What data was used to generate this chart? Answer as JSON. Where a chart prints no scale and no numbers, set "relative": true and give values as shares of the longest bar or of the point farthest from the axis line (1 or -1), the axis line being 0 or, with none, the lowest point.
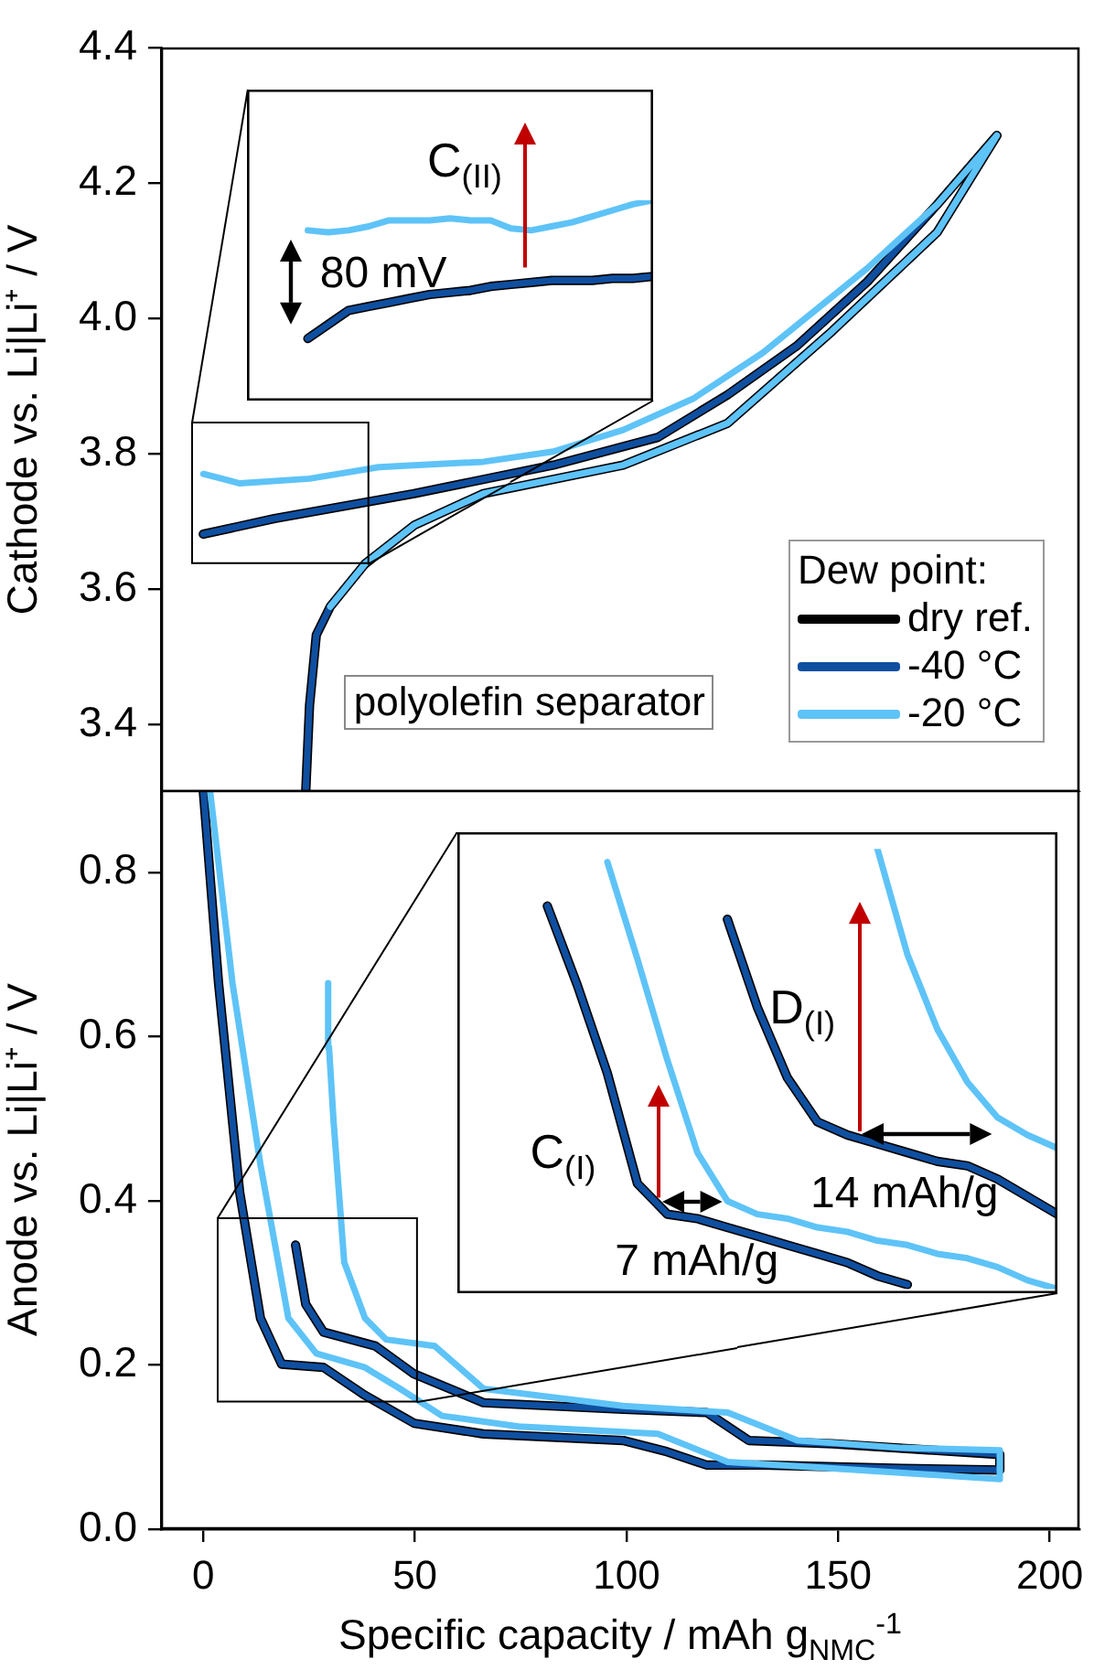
{
  "chart_data": [
    {
      "type": "line",
      "ylabel": "Cathode vs. Li|Li⁺ / V",
      "xlim": [
        -10,
        207
      ],
      "xticks": [
        0,
        50,
        100,
        150,
        200
      ],
      "ylim": [
        3.3,
        4.4
      ],
      "yticks": [
        3.4,
        3.6,
        3.8,
        {
          "value": 4,
          "label": "4.0"
        },
        4.2,
        4.4
      ],
      "tick_labels": "y",
      "grid": false,
      "legend": "bottom right",
      "legend_title": "Dew point:",
      "marker": "none",
      "annotations": [
        "polyolefin separator"
      ],
      "series": [
        {
          "name": "dry ref.",
          "color": "#000000",
          "x": [
            0,
            16.8,
            49.8,
            82.7,
            107.4,
            123.9,
            140.4,
            156.9,
            173.4,
            187.5,
            173.4,
            148.6,
            123.9,
            99.2,
            66.2,
            49.8,
            38.2,
            30.0,
            26.7,
            25.1,
            24.2
          ],
          "values": [
            3.681,
            3.704,
            3.741,
            3.783,
            3.824,
            3.887,
            3.96,
            4.054,
            4.168,
            4.27,
            4.127,
            3.981,
            3.845,
            3.783,
            3.741,
            3.694,
            3.637,
            3.574,
            3.532,
            3.428,
            3.3
          ]
        },
        {
          "name": "-40 °C",
          "color": "#0f4fa0",
          "x": [
            0,
            16.8,
            49.8,
            82.7,
            107.4,
            123.9,
            140.4,
            156.9,
            173.4,
            187.5,
            173.4,
            148.6,
            123.9,
            99.2,
            66.2,
            49.8,
            38.2,
            30.0,
            26.7,
            25.1,
            24.2
          ],
          "values": [
            3.681,
            3.704,
            3.741,
            3.783,
            3.824,
            3.887,
            3.96,
            4.054,
            4.168,
            4.27,
            4.127,
            3.981,
            3.845,
            3.783,
            3.741,
            3.694,
            3.637,
            3.574,
            3.532,
            3.428,
            3.3
          ]
        },
        {
          "name": "-20 °C",
          "color": "#5ec3f7",
          "x": [
            0,
            8.6,
            25.1,
            41.5,
            66.2,
            82.7,
            99.2,
            115.7,
            132.2,
            156.9,
            173.4,
            187.5,
            173.4,
            148.6,
            123.9,
            99.2,
            66.2,
            49.8,
            38.2,
            30.0
          ],
          "values": [
            3.77,
            3.756,
            3.763,
            3.78,
            3.788,
            3.803,
            3.835,
            3.881,
            3.949,
            4.074,
            4.168,
            4.27,
            4.127,
            3.981,
            3.845,
            3.783,
            3.741,
            3.694,
            3.637,
            3.574
          ]
        }
      ]
    },
    {
      "type": "line",
      "relative": true,
      "tick_labels": false,
      "marker": "none",
      "annotations": [
        "C$_{(II)}$",
        "80 mV"
      ],
      "categories": [
        null,
        null,
        null,
        null,
        null,
        null,
        null,
        null,
        null,
        null,
        null,
        null,
        null,
        null,
        null,
        null,
        null,
        null,
        null,
        null,
        null
      ],
      "series": [
        {
          "color": "#000000",
          "values": [
            null,
            null,
            null,
            0.31,
            0.38,
            0.45,
            0.47,
            0.49,
            0.51,
            0.53,
            0.54,
            0.55,
            0.57,
            0.58,
            0.59,
            0.6,
            0.6,
            0.6,
            0.61,
            0.61,
            0.62
          ]
        },
        {
          "color": "#0f4fa0",
          "values": [
            null,
            null,
            null,
            0.31,
            0.38,
            0.45,
            0.47,
            0.49,
            0.51,
            0.53,
            0.54,
            0.55,
            0.57,
            0.58,
            0.59,
            0.6,
            0.6,
            0.6,
            0.61,
            0.61,
            0.62
          ]
        },
        {
          "color": "#5ec3f7",
          "values": [
            null,
            null,
            null,
            0.85,
            0.84,
            0.85,
            0.87,
            0.9,
            0.9,
            0.9,
            0.91,
            0.9,
            0.9,
            0.86,
            0.85,
            0.87,
            0.89,
            0.92,
            0.95,
            0.98,
            1
          ]
        }
      ]
    },
    {
      "type": "line",
      "ylabel": "Anode vs. Li|Li⁺ / V",
      "xlabel": "Specific capacity / mAh g$_{NMC}$$^{-1}$",
      "xlim": [
        -10,
        207
      ],
      "xticks": [
        0,
        50,
        100,
        150,
        200
      ],
      "ylim": [
        0,
        0.9
      ],
      "yticks": [
        {
          "value": 0,
          "label": "0.0"
        },
        0.2,
        0.4,
        0.6,
        0.8
      ],
      "grid": false,
      "marker": "none",
      "series": [
        {
          "color": "#000000",
          "x": [
            0,
            3.6,
            8.6,
            13.5,
            18.5,
            28.4,
            38.2,
            49.8,
            66.2,
            99.2,
            109.1,
            119.0,
            132.2,
            165.1,
            188.2,
            188.2,
            148.6,
            128.9,
            119.0,
            99.2,
            66.2,
            49.8,
            40.7,
            28.4,
            24.2,
            21.8
          ],
          "values": [
            0.899,
            0.665,
            0.41,
            0.257,
            0.201,
            0.197,
            0.163,
            0.129,
            0.116,
            0.108,
            0.095,
            0.078,
            0.078,
            0.074,
            0.072,
            0.091,
            0.104,
            0.108,
            0.142,
            0.146,
            0.154,
            0.189,
            0.223,
            0.24,
            0.274,
            0.346
          ]
        },
        {
          "color": "#0f4fa0",
          "x": [
            0,
            3.6,
            8.6,
            13.5,
            18.5,
            28.4,
            38.2,
            49.8,
            66.2,
            99.2,
            109.1,
            119.0,
            132.2,
            165.1,
            188.2,
            188.2,
            148.6,
            128.9,
            119.0,
            99.2,
            66.2,
            49.8,
            40.7,
            28.4,
            24.2,
            21.8
          ],
          "values": [
            0.899,
            0.665,
            0.41,
            0.257,
            0.201,
            0.197,
            0.163,
            0.129,
            0.116,
            0.108,
            0.095,
            0.078,
            0.078,
            0.074,
            0.072,
            0.091,
            0.104,
            0.108,
            0.142,
            0.146,
            0.154,
            0.189,
            0.223,
            0.24,
            0.274,
            0.346
          ]
        },
        {
          "color": "#5ec3f7",
          "x": [
            1.6,
            6.9,
            13.5,
            20.1,
            26.7,
            38.2,
            46.5,
            56.4,
            74.5,
            107.4,
            123.9,
            148.6,
            188.2,
            188.2,
            165.1,
            140.4,
            123.9,
            99.2,
            66.2,
            54.7,
            43.2,
            38.2,
            33.3,
            30.8,
            29.7,
            29.5
          ],
          "values": [
            0.899,
            0.665,
            0.444,
            0.257,
            0.214,
            0.197,
            0.171,
            0.138,
            0.125,
            0.116,
            0.082,
            0.074,
            0.061,
            0.096,
            0.099,
            0.108,
            0.142,
            0.15,
            0.171,
            0.223,
            0.231,
            0.257,
            0.325,
            0.495,
            0.587,
            0.665
          ]
        }
      ]
    },
    {
      "type": "line",
      "relative": true,
      "tick_labels": false,
      "marker": "none",
      "annotations": [
        "C$_{(I)}$",
        "D$_{(I)}$",
        "7 mAh/g",
        "14 mAh/g"
      ],
      "categories": [
        null,
        null,
        null,
        null,
        null,
        null,
        null,
        null,
        null,
        null,
        null,
        null,
        null,
        null,
        null,
        null,
        null,
        null,
        null,
        null,
        null
      ],
      "series": [
        {
          "color": "#000000",
          "values": [
            null,
            null,
            null,
            0.87,
            0.69,
            0.49,
            0.24,
            0.17,
            0.16,
            0.14,
            0.12,
            0.1,
            0.08,
            0.06,
            0.03,
            0.01,
            null,
            null,
            null,
            null,
            null
          ]
        },
        {
          "color": "#000000",
          "values": [
            null,
            null,
            null,
            null,
            null,
            null,
            null,
            null,
            null,
            0.84,
            0.64,
            0.48,
            0.38,
            0.35,
            0.33,
            0.31,
            0.29,
            0.28,
            0.25,
            0.21,
            0.17
          ]
        },
        {
          "color": "#0f4fa0",
          "values": [
            null,
            null,
            null,
            0.87,
            0.69,
            0.49,
            0.24,
            0.17,
            0.16,
            0.14,
            0.12,
            0.1,
            0.08,
            0.06,
            0.03,
            0.01,
            null,
            null,
            null,
            null,
            null
          ]
        },
        {
          "color": "#0f4fa0",
          "values": [
            null,
            null,
            null,
            null,
            null,
            null,
            null,
            null,
            null,
            0.84,
            0.64,
            0.48,
            0.38,
            0.35,
            0.33,
            0.31,
            0.29,
            0.28,
            0.25,
            0.21,
            0.17
          ]
        },
        {
          "color": "#5ec3f7",
          "values": [
            null,
            null,
            null,
            null,
            null,
            0.97,
            0.75,
            0.52,
            0.31,
            0.2,
            0.17,
            0.16,
            0.14,
            0.13,
            0.11,
            0.1,
            0.08,
            0.07,
            0.05,
            0.02,
            0
          ]
        },
        {
          "color": "#5ec3f7",
          "values": [
            null,
            null,
            null,
            null,
            null,
            null,
            null,
            null,
            null,
            null,
            null,
            null,
            null,
            null,
            1,
            0.76,
            0.59,
            0.47,
            0.39,
            0.35,
            0.32
          ]
        }
      ]
    }
  ]
}
